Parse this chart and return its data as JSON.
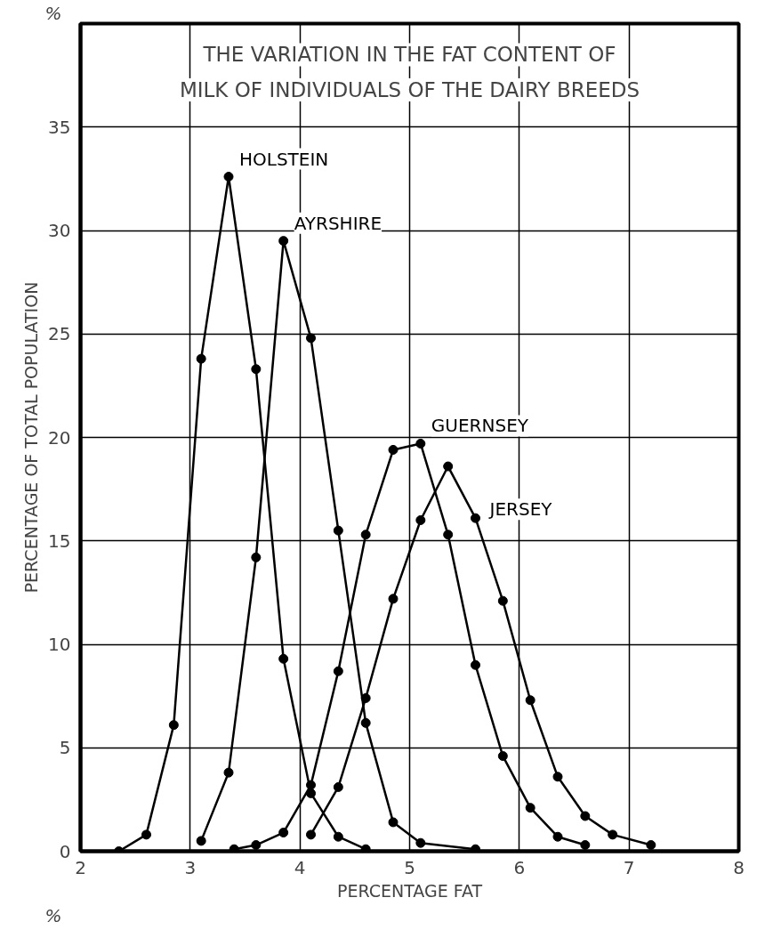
{
  "chart_data": {
    "type": "line",
    "title": "THE VARIATION IN THE FAT CONTENT OF\nMILK OF INDIVIDUALS OF THE DAIRY BREEDS",
    "xlabel": "PERCENTAGE FAT",
    "ylabel": "PERCENTAGE OF TOTAL POPULATION",
    "annotations": [
      "%",
      "%"
    ],
    "xlim": [
      2,
      8
    ],
    "xticks": [
      2,
      3,
      4,
      5,
      6,
      7,
      8
    ],
    "ylim": [
      0,
      40
    ],
    "yticks": [
      0,
      5,
      10,
      15,
      20,
      25,
      30,
      35
    ],
    "grid": true,
    "marker": "circle",
    "line_style": "solid",
    "series": [
      {
        "name": "HOLSTEIN",
        "color": "#000000",
        "x": [
          2.35,
          2.6,
          2.85,
          3.1,
          3.35,
          3.6,
          3.85,
          4.1,
          4.35,
          4.6
        ],
        "values": [
          0,
          0.8,
          6.1,
          23.8,
          32.6,
          23.3,
          9.3,
          2.8,
          0.7,
          0.1
        ]
      },
      {
        "name": "AYRSHIRE",
        "color": "#000000",
        "x": [
          3.1,
          3.35,
          3.6,
          3.85,
          4.1,
          4.35,
          4.6,
          4.85,
          5.1,
          5.6
        ],
        "values": [
          0.5,
          3.8,
          14.2,
          29.5,
          24.8,
          15.5,
          6.2,
          1.4,
          0.4,
          0.1
        ]
      },
      {
        "name": "GUERNSEY",
        "color": "#000000",
        "x": [
          3.4,
          3.6,
          3.85,
          4.1,
          4.35,
          4.6,
          4.85,
          5.1,
          5.35,
          5.6,
          5.85,
          6.1,
          6.35,
          6.6
        ],
        "values": [
          0.1,
          0.3,
          0.9,
          3.2,
          8.7,
          15.3,
          19.4,
          19.7,
          15.3,
          9.0,
          4.6,
          2.1,
          0.7,
          0.3
        ]
      },
      {
        "name": "JERSEY",
        "color": "#000000",
        "x": [
          4.1,
          4.35,
          4.6,
          4.85,
          5.1,
          5.35,
          5.6,
          5.85,
          6.1,
          6.35,
          6.6,
          6.85,
          7.2
        ],
        "values": [
          0.8,
          3.1,
          7.4,
          12.2,
          16.0,
          18.6,
          16.1,
          12.1,
          7.3,
          3.6,
          1.7,
          0.8,
          0.3
        ]
      }
    ]
  }
}
